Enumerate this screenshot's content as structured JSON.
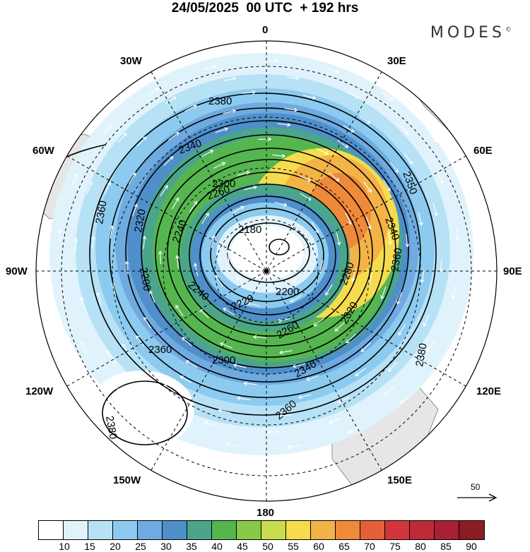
{
  "title": "24/05/2025  00 UTC  + 192 hrs",
  "brand": "MODES",
  "brand_mark": "©",
  "longitude_labels": {
    "n0": "0",
    "e30": "30E",
    "e60": "60E",
    "e90": "90E",
    "e120": "120E",
    "e150": "150E",
    "s180": "180",
    "w150": "150W",
    "w120": "120W",
    "w90": "90W",
    "w60": "60W",
    "w30": "30W"
  },
  "contour_labels": [
    "2380",
    "2340",
    "2300",
    "2260",
    "2180",
    "2240",
    "2320",
    "2360",
    "2350",
    "2340",
    "2360",
    "2200",
    "2220",
    "2240",
    "2300",
    "2200",
    "2260",
    "2280",
    "2320",
    "2360",
    "2340",
    "2360",
    "2380",
    "2380",
    "2380"
  ],
  "reference_vector": {
    "value": "50"
  },
  "colorbar": {
    "ticks": [
      "10",
      "15",
      "20",
      "25",
      "30",
      "35",
      "40",
      "45",
      "50",
      "55",
      "60",
      "65",
      "70",
      "75",
      "80",
      "85",
      "90"
    ],
    "colors": [
      "#ffffff",
      "#e0f3fc",
      "#b7e2f6",
      "#8ccbef",
      "#6fabe0",
      "#4f8fca",
      "#4aa58a",
      "#55b650",
      "#88c94a",
      "#c9dc4e",
      "#f5dc4e",
      "#f3b347",
      "#ee8a3a",
      "#e3603a",
      "#d2363a",
      "#bf2a38",
      "#a91f33",
      "#8b1c24"
    ]
  }
}
